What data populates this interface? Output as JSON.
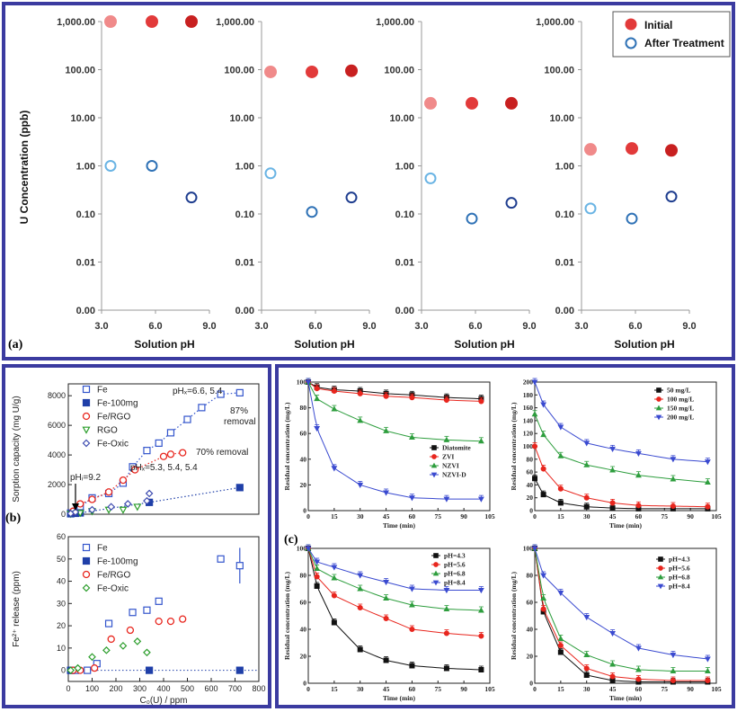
{
  "colors": {
    "frame": "#3b3ba0",
    "initial": [
      "#f08a8a",
      "#e23a3a",
      "#c82020"
    ],
    "after": [
      "#6ab4e4",
      "#2f72b6",
      "#1e3d8f"
    ],
    "fe": "#3355cc",
    "fe_100mg": "#1f3fa8",
    "fe_rgo": "#e8261e",
    "rgo": "#2a9d2a",
    "fe_oxic": "#3d4bb0",
    "diatomite": "#111111",
    "zvi": "#e8261e",
    "nzvi": "#2e9e3e",
    "nzvi_d": "#3a4ad0"
  },
  "panel_a": {
    "tag": "(a)",
    "ylabel": "U Concentration (ppb)",
    "xlabel": "Solution pH",
    "yticks": [
      "1,000.00",
      "100.00",
      "10.00",
      "1.00",
      "0.10",
      "0.01",
      "0.00"
    ],
    "xticks": [
      "3.0",
      "6.0",
      "9.0"
    ],
    "legend": {
      "initial": "Initial",
      "after": "After Treatment"
    }
  },
  "panel_b": {
    "tag": "(b)",
    "top": {
      "ylabel": "Sorption capacity (mg U/g)",
      "yticks": [
        "0",
        "2000",
        "4000",
        "6000",
        "8000"
      ],
      "legend": [
        "Fe",
        "Fe-100mg",
        "Fe/RGO",
        "RGO",
        "Fe-Oxic"
      ],
      "annotations": {
        "ph_f_blue": "pHₓ=6.6, 5.4",
        "removal_87": "87%",
        "removal_word": "removal",
        "removal_70": "70% removal",
        "ph_f_red": "pHₓ=5.3, 5.4, 5.4",
        "ph_i": "pHᵢ=9.2"
      }
    },
    "bottom": {
      "ylabel": "Fe²⁺ release (ppm)",
      "xlabel": "C₀(U) / ppm",
      "yticks": [
        "0",
        "10",
        "20",
        "30",
        "40",
        "50",
        "60"
      ],
      "xticks": [
        "0",
        "100",
        "200",
        "300",
        "400",
        "500",
        "600",
        "700",
        "800"
      ],
      "legend": [
        "Fe",
        "Fe-100mg",
        "Fe/RGO",
        "Fe-Oxic"
      ]
    }
  },
  "panel_c": {
    "tag": "(c)",
    "ylabel": "Residual concentration (mg/L)",
    "xlabel": "Time (min)",
    "xticks": [
      "0",
      "15",
      "30",
      "45",
      "60",
      "75",
      "90",
      "105"
    ],
    "yticks_100": [
      "0",
      "20",
      "40",
      "60",
      "80",
      "100"
    ],
    "yticks_200": [
      "0",
      "20",
      "40",
      "60",
      "80",
      "100",
      "120",
      "140",
      "160",
      "180",
      "200"
    ],
    "legends": [
      [
        "Diatomite",
        "ZVI",
        "NZVI",
        "NZVI-D"
      ],
      [
        "50 mg/L",
        "100 mg/L",
        "150 mg/L",
        "200 mg/L"
      ],
      [
        "pH=4.3",
        "pH=5.6",
        "pH=6.8",
        "pH=8.4"
      ],
      [
        "pH=4.3",
        "pH=5.6",
        "pH=6.8",
        "pH=8.4"
      ]
    ]
  },
  "chart_data": [
    {
      "type": "scatter",
      "id": "a",
      "ylabel": "U Concentration (ppb)",
      "xlabel": "Solution pH",
      "log_y": true,
      "ylim": [
        0.001,
        1000
      ],
      "xlim": [
        3.0,
        9.0
      ],
      "subplots": [
        {
          "x": [
            3.5,
            5.8,
            8.0
          ],
          "initial": [
            1000,
            1000,
            1000
          ],
          "after": [
            1.0,
            1.0,
            0.22
          ]
        },
        {
          "x": [
            3.5,
            5.8,
            8.0
          ],
          "initial": [
            90,
            90,
            95
          ],
          "after": [
            0.7,
            0.11,
            0.22
          ]
        },
        {
          "x": [
            3.5,
            5.8,
            8.0
          ],
          "initial": [
            20,
            20,
            20
          ],
          "after": [
            0.55,
            0.08,
            0.17
          ]
        },
        {
          "x": [
            3.5,
            5.8,
            8.0
          ],
          "initial": [
            2.2,
            2.3,
            2.1
          ],
          "after": [
            0.13,
            0.08,
            0.23
          ]
        }
      ]
    },
    {
      "type": "scatter",
      "id": "b-top",
      "ylabel": "Sorption capacity (mg U/g)",
      "xlim": [
        0,
        800
      ],
      "ylim": [
        0,
        8800
      ],
      "series": [
        {
          "name": "Fe",
          "x": [
            10,
            30,
            50,
            100,
            170,
            230,
            270,
            330,
            380,
            430,
            500,
            560,
            640,
            720
          ],
          "y": [
            80,
            200,
            500,
            1100,
            1400,
            2100,
            3200,
            4300,
            4800,
            5500,
            6400,
            7200,
            8100,
            8200
          ]
        },
        {
          "name": "Fe-100mg",
          "x": [
            10,
            30,
            50,
            340,
            720
          ],
          "y": [
            30,
            60,
            90,
            800,
            1800
          ]
        },
        {
          "name": "Fe/RGO",
          "x": [
            20,
            50,
            100,
            170,
            230,
            280,
            400,
            430,
            480
          ],
          "y": [
            200,
            700,
            1000,
            1500,
            2300,
            3000,
            3900,
            4050,
            4150
          ]
        },
        {
          "name": "RGO",
          "x": [
            10,
            50,
            100,
            170,
            230,
            290
          ],
          "y": [
            20,
            80,
            200,
            300,
            300,
            500
          ]
        },
        {
          "name": "Fe-Oxic",
          "x": [
            10,
            30,
            100,
            180,
            250,
            330,
            340
          ],
          "y": [
            50,
            150,
            300,
            500,
            700,
            900,
            1400
          ]
        }
      ]
    },
    {
      "type": "scatter",
      "id": "b-bottom",
      "ylabel": "Fe²⁺ release (ppm)",
      "xlabel": "C₀(U) / ppm",
      "xlim": [
        0,
        800
      ],
      "ylim": [
        0,
        60
      ],
      "series": [
        {
          "name": "Fe",
          "x": [
            10,
            30,
            80,
            120,
            170,
            270,
            330,
            380,
            640,
            720
          ],
          "y": [
            0,
            0,
            0,
            3,
            21,
            26,
            27,
            31,
            50,
            47
          ]
        },
        {
          "name": "Fe-100mg",
          "x": [
            10,
            340,
            720
          ],
          "y": [
            0,
            0,
            0
          ]
        },
        {
          "name": "Fe/RGO",
          "x": [
            20,
            50,
            110,
            180,
            260,
            380,
            430,
            480
          ],
          "y": [
            0,
            0,
            1,
            14,
            18,
            22,
            22,
            23
          ]
        },
        {
          "name": "Fe-Oxic",
          "x": [
            10,
            40,
            100,
            160,
            230,
            290,
            330
          ],
          "y": [
            0,
            1,
            6,
            9,
            11,
            13,
            8
          ]
        }
      ]
    },
    {
      "type": "line",
      "id": "c-1",
      "xlabel": "Time (min)",
      "ylabel": "Residual concentration (mg/L)",
      "xlim": [
        0,
        105
      ],
      "ylim": [
        0,
        100
      ],
      "x": [
        0,
        5,
        15,
        30,
        45,
        60,
        80,
        100
      ],
      "series": [
        {
          "name": "Diatomite",
          "values": [
            100,
            96,
            94,
            93,
            91,
            90,
            88,
            87
          ]
        },
        {
          "name": "ZVI",
          "values": [
            100,
            95,
            93,
            91,
            89,
            88,
            86,
            85
          ]
        },
        {
          "name": "NZVI",
          "values": [
            100,
            87,
            79,
            70,
            62,
            57,
            55,
            54
          ]
        },
        {
          "name": "NZVI-D",
          "values": [
            100,
            64,
            33,
            20,
            14,
            10,
            9,
            9
          ]
        }
      ]
    },
    {
      "type": "line",
      "id": "c-2",
      "xlabel": "Time (min)",
      "ylabel": "Residual concentration (mg/L)",
      "xlim": [
        0,
        105
      ],
      "ylim": [
        0,
        200
      ],
      "x": [
        0,
        5,
        15,
        30,
        45,
        60,
        80,
        100
      ],
      "series": [
        {
          "name": "50 mg/L",
          "values": [
            50,
            25,
            12,
            6,
            4,
            3,
            3,
            3
          ]
        },
        {
          "name": "100 mg/L",
          "values": [
            100,
            65,
            34,
            20,
            12,
            8,
            7,
            6
          ]
        },
        {
          "name": "150 mg/L",
          "values": [
            150,
            118,
            85,
            71,
            63,
            55,
            49,
            44
          ]
        },
        {
          "name": "200 mg/L",
          "values": [
            200,
            165,
            130,
            105,
            96,
            89,
            80,
            76
          ]
        }
      ]
    },
    {
      "type": "line",
      "id": "c-3",
      "xlabel": "Time (min)",
      "ylabel": "Residual concentration (mg/L)",
      "xlim": [
        0,
        105
      ],
      "ylim": [
        0,
        100
      ],
      "x": [
        0,
        5,
        15,
        30,
        45,
        60,
        80,
        100
      ],
      "series": [
        {
          "name": "pH=4.3",
          "values": [
            100,
            72,
            45,
            25,
            17,
            13,
            11,
            10
          ]
        },
        {
          "name": "pH=5.6",
          "values": [
            100,
            79,
            65,
            56,
            48,
            40,
            37,
            35
          ]
        },
        {
          "name": "pH=6.8",
          "values": [
            100,
            85,
            78,
            70,
            63,
            58,
            55,
            54
          ]
        },
        {
          "name": "pH=8.4",
          "values": [
            100,
            90,
            86,
            80,
            75,
            70,
            69,
            69
          ]
        }
      ]
    },
    {
      "type": "line",
      "id": "c-4",
      "xlabel": "Time (min)",
      "ylabel": "Residual concentration (mg/L)",
      "xlim": [
        0,
        105
      ],
      "ylim": [
        0,
        100
      ],
      "x": [
        0,
        5,
        15,
        30,
        45,
        60,
        80,
        100
      ],
      "series": [
        {
          "name": "pH=4.3",
          "values": [
            100,
            53,
            23,
            6,
            2,
            1,
            1,
            1
          ]
        },
        {
          "name": "pH=5.6",
          "values": [
            100,
            55,
            28,
            11,
            5,
            3,
            2,
            2
          ]
        },
        {
          "name": "pH=6.8",
          "values": [
            100,
            63,
            33,
            21,
            14,
            10,
            9,
            9
          ]
        },
        {
          "name": "pH=8.4",
          "values": [
            100,
            80,
            67,
            49,
            37,
            26,
            21,
            18
          ]
        }
      ]
    }
  ]
}
